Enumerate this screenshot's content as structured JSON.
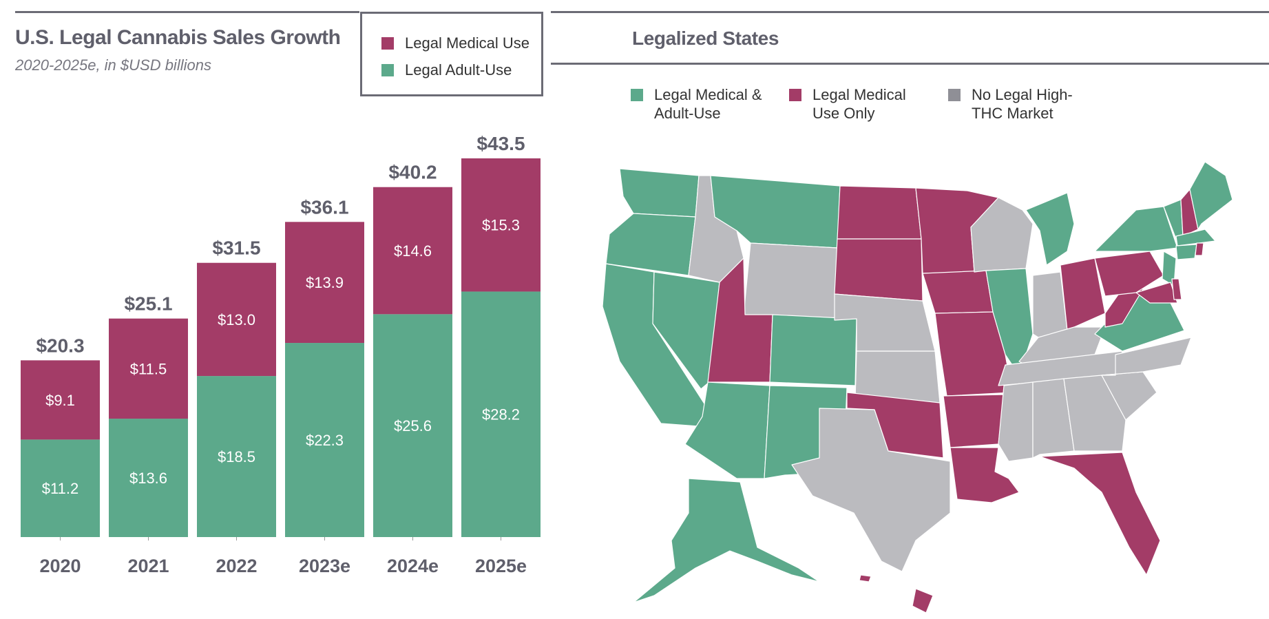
{
  "colors": {
    "adult_use": "#5ca98b",
    "medical": "#a33c67",
    "no_market": "#bbbbbf",
    "rule": "#6b6b75",
    "text": "#5a5a66"
  },
  "chart": {
    "title": "U.S. Legal Cannabis Sales Growth",
    "subtitle": "2020-2025e, in $USD billions",
    "legend": [
      {
        "label": "Legal Medical Use",
        "color": "#a33c67"
      },
      {
        "label": "Legal Adult-Use",
        "color": "#5ca98b"
      }
    ]
  },
  "chart_data": {
    "type": "bar",
    "stacked": true,
    "title": "U.S. Legal Cannabis Sales Growth",
    "subtitle": "2020-2025e, in $USD billions",
    "categories": [
      "2020",
      "2021",
      "2022",
      "2023e",
      "2024e",
      "2025e"
    ],
    "series": [
      {
        "name": "Legal Adult-Use",
        "values": [
          11.2,
          13.6,
          18.5,
          22.3,
          25.6,
          28.2
        ],
        "labels": [
          "$11.2",
          "$13.6",
          "$18.5",
          "$22.3",
          "$25.6",
          "$28.2"
        ]
      },
      {
        "name": "Legal Medical Use",
        "values": [
          9.1,
          11.5,
          13.0,
          13.9,
          14.6,
          15.3
        ],
        "labels": [
          "$9.1",
          "$11.5",
          "$13.0",
          "$13.9",
          "$14.6",
          "$15.3"
        ]
      }
    ],
    "totals": [
      "$20.3",
      "$25.1",
      "$31.5",
      "$36.1",
      "$40.2",
      "$43.5"
    ],
    "ylim": [
      0,
      43.5
    ],
    "xlabel": "",
    "ylabel": "",
    "legend": "top-right"
  },
  "map": {
    "title": "Legalized States",
    "legend": [
      {
        "label_line1": "Legal Medical &",
        "label_line2": "Adult-Use",
        "color": "#5ca98b"
      },
      {
        "label_line1": "Legal Medical",
        "label_line2": "Use Only",
        "color": "#a33c67"
      },
      {
        "label_line1": "No Legal High-",
        "label_line2": "THC Market",
        "color": "#8f8f96"
      }
    ]
  }
}
